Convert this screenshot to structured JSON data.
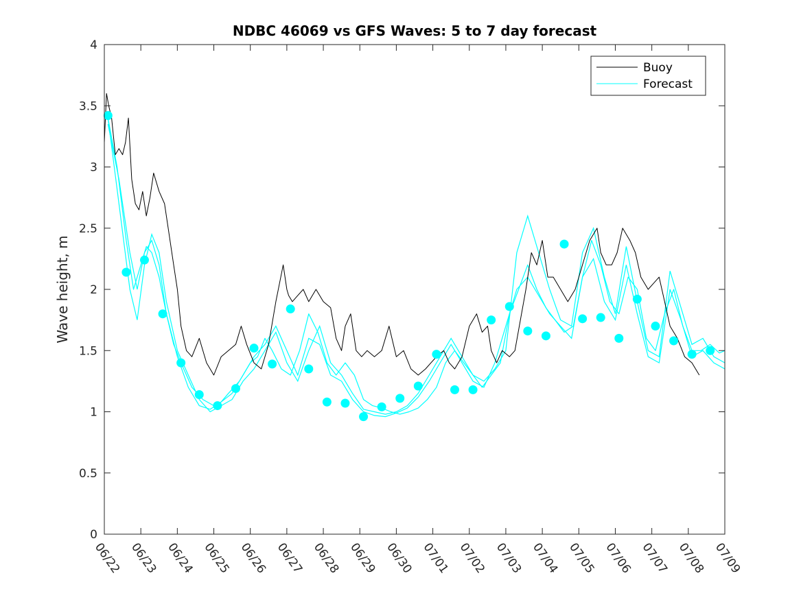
{
  "chart_data": {
    "type": "line",
    "title": "NDBC 46069 vs GFS Waves: 5 to 7 day forecast",
    "xlabel": "",
    "ylabel": "Wave height, m",
    "xlim_days": [
      0,
      17
    ],
    "ylim": [
      0,
      4
    ],
    "x_tick_labels": [
      "06/22",
      "06/23",
      "06/24",
      "06/25",
      "06/26",
      "06/27",
      "06/28",
      "06/29",
      "06/30",
      "07/01",
      "07/02",
      "07/03",
      "07/04",
      "07/05",
      "07/06",
      "07/07",
      "07/08",
      "07/09"
    ],
    "y_tick_labels": [
      "0",
      "0.5",
      "1",
      "1.5",
      "2",
      "2.5",
      "3",
      "3.5",
      "4"
    ],
    "y_ticks": [
      0,
      0.5,
      1,
      1.5,
      2,
      2.5,
      3,
      3.5,
      4
    ],
    "grid": false,
    "legend_position": "top-right",
    "legend": [
      "Buoy",
      "Forecast"
    ],
    "colors": {
      "buoy": "#000000",
      "forecast": "#00ffff"
    },
    "series": [
      {
        "name": "Buoy",
        "color": "#000000",
        "x": [
          0,
          0.06,
          0.12,
          0.2,
          0.3,
          0.4,
          0.5,
          0.58,
          0.66,
          0.75,
          0.85,
          0.95,
          1.05,
          1.15,
          1.25,
          1.35,
          1.5,
          1.65,
          1.8,
          1.9,
          2.0,
          2.1,
          2.25,
          2.4,
          2.6,
          2.8,
          3.0,
          3.2,
          3.4,
          3.6,
          3.75,
          3.9,
          4.1,
          4.3,
          4.5,
          4.7,
          4.9,
          5.0,
          5.05,
          5.15,
          5.3,
          5.45,
          5.6,
          5.8,
          6.0,
          6.2,
          6.35,
          6.5,
          6.6,
          6.75,
          6.9,
          7.05,
          7.2,
          7.4,
          7.6,
          7.8,
          8.0,
          8.2,
          8.4,
          8.6,
          8.8,
          8.95,
          9.1,
          9.3,
          9.45,
          9.6,
          9.8,
          10.0,
          10.2,
          10.35,
          10.5,
          10.6,
          10.75,
          10.9,
          11.1,
          11.25,
          11.4,
          11.55,
          11.7,
          11.85,
          12.0,
          12.15,
          12.3,
          12.5,
          12.7,
          12.9,
          13.1,
          13.3,
          13.5,
          13.6,
          13.75,
          13.9,
          14.05,
          14.2,
          14.4,
          14.55,
          14.7,
          14.9,
          15.05,
          15.2,
          15.35,
          15.5,
          15.7,
          15.9,
          16.1,
          16.3
        ],
        "values": [
          3.2,
          3.6,
          3.5,
          3.4,
          3.1,
          3.15,
          3.1,
          3.2,
          3.4,
          2.9,
          2.7,
          2.65,
          2.8,
          2.6,
          2.75,
          2.95,
          2.8,
          2.7,
          2.4,
          2.2,
          2.0,
          1.7,
          1.5,
          1.45,
          1.6,
          1.4,
          1.3,
          1.45,
          1.5,
          1.55,
          1.7,
          1.55,
          1.4,
          1.35,
          1.55,
          1.9,
          2.2,
          2.0,
          1.95,
          1.9,
          1.95,
          2.0,
          1.9,
          2.0,
          1.9,
          1.85,
          1.6,
          1.5,
          1.7,
          1.8,
          1.5,
          1.45,
          1.5,
          1.45,
          1.5,
          1.7,
          1.45,
          1.5,
          1.35,
          1.3,
          1.35,
          1.4,
          1.45,
          1.5,
          1.4,
          1.35,
          1.45,
          1.7,
          1.8,
          1.65,
          1.7,
          1.5,
          1.4,
          1.5,
          1.45,
          1.5,
          1.75,
          2.0,
          2.3,
          2.2,
          2.4,
          2.1,
          2.1,
          2.0,
          1.9,
          2.0,
          2.2,
          2.4,
          2.5,
          2.3,
          2.2,
          2.2,
          2.3,
          2.5,
          2.4,
          2.3,
          2.1,
          2.0,
          2.05,
          2.1,
          1.9,
          1.7,
          1.6,
          1.45,
          1.4,
          1.3
        ]
      },
      {
        "name": "Forecast",
        "color": "#00ffff",
        "x": [
          0.1,
          0.35,
          0.6,
          0.8,
          1.0,
          1.15,
          1.3,
          1.5,
          1.7,
          1.9,
          2.1,
          2.4,
          2.7,
          3.0,
          3.2,
          3.4,
          3.7,
          4.0,
          4.2,
          4.4,
          4.6,
          4.85,
          5.1,
          5.35,
          5.6,
          5.85,
          6.1,
          6.35,
          6.6,
          6.85,
          7.1,
          7.35,
          7.6,
          7.85,
          8.1,
          8.35,
          8.6,
          8.85,
          9.1,
          9.35,
          9.6,
          9.85,
          10.1,
          10.35,
          10.6,
          10.85,
          11.1,
          11.35,
          11.6,
          11.85,
          12.1,
          12.35,
          12.6,
          12.85,
          13.1,
          13.35,
          13.6,
          13.85,
          14.1,
          14.35,
          14.6,
          14.85,
          15.1,
          15.35,
          15.6,
          15.85,
          16.1,
          16.35,
          16.6,
          16.85,
          17.0
        ],
        "values": [
          3.4,
          3.0,
          2.4,
          2.0,
          2.2,
          2.35,
          2.3,
          2.1,
          1.8,
          1.55,
          1.4,
          1.2,
          1.1,
          1.05,
          1.08,
          1.15,
          1.25,
          1.4,
          1.45,
          1.6,
          1.5,
          1.35,
          1.3,
          1.5,
          1.8,
          1.65,
          1.4,
          1.3,
          1.4,
          1.3,
          1.1,
          1.05,
          1.03,
          1.0,
          0.98,
          1.0,
          1.03,
          1.1,
          1.2,
          1.4,
          1.5,
          1.4,
          1.3,
          1.2,
          1.3,
          1.4,
          1.8,
          2.0,
          2.2,
          2.0,
          1.85,
          1.75,
          1.65,
          1.7,
          2.1,
          2.4,
          2.2,
          1.9,
          1.8,
          2.1,
          2.0,
          1.6,
          1.5,
          1.8,
          2.0,
          1.7,
          1.5,
          1.5,
          1.55,
          1.48,
          1.5
        ]
      }
    ],
    "forecast_ensemble": [
      {
        "x": [
          0.1,
          0.4,
          0.7,
          0.9,
          1.1,
          1.3,
          1.5,
          1.7,
          2.0,
          2.3,
          2.6,
          2.9,
          3.2,
          3.5,
          3.8,
          4.1,
          4.4,
          4.7,
          5.0,
          5.3,
          5.6,
          5.9,
          6.2,
          6.5,
          6.8,
          7.1,
          7.4,
          7.7,
          8.0,
          8.3,
          8.6,
          8.9,
          9.2,
          9.5,
          9.8,
          10.1,
          10.4,
          10.7,
          11.0,
          11.3,
          11.6,
          11.9,
          12.2,
          12.5,
          12.8,
          13.1,
          13.4,
          13.7,
          14.0,
          14.3,
          14.6,
          14.9,
          15.2,
          15.5,
          15.8,
          16.1,
          16.4,
          16.7,
          17.0
        ],
        "values": [
          3.4,
          2.7,
          2.0,
          1.75,
          2.2,
          2.45,
          2.3,
          1.9,
          1.5,
          1.3,
          1.1,
          1.0,
          1.05,
          1.1,
          1.25,
          1.35,
          1.5,
          1.65,
          1.4,
          1.25,
          1.5,
          1.7,
          1.4,
          1.3,
          1.15,
          1.02,
          1.0,
          0.98,
          1.0,
          1.05,
          1.15,
          1.3,
          1.45,
          1.6,
          1.45,
          1.3,
          1.25,
          1.35,
          1.5,
          2.3,
          2.6,
          2.3,
          2.0,
          1.75,
          1.7,
          2.3,
          2.5,
          2.1,
          1.8,
          2.35,
          1.9,
          1.5,
          1.45,
          2.15,
          1.85,
          1.55,
          1.6,
          1.45,
          1.4
        ]
      },
      {
        "x": [
          0.1,
          0.4,
          0.7,
          0.9,
          1.1,
          1.3,
          1.5,
          1.7,
          2.0,
          2.3,
          2.6,
          2.9,
          3.2,
          3.5,
          3.8,
          4.1,
          4.4,
          4.7,
          5.0,
          5.3,
          5.6,
          5.9,
          6.2,
          6.5,
          6.8,
          7.1,
          7.4,
          7.7,
          8.0,
          8.3,
          8.6,
          8.9,
          9.2,
          9.5,
          9.8,
          10.1,
          10.4,
          10.7,
          11.0,
          11.3,
          11.6,
          11.9,
          12.2,
          12.5,
          12.8,
          13.1,
          13.4,
          13.7,
          14.0,
          14.3,
          14.6,
          14.9,
          15.2,
          15.5,
          15.8,
          16.1,
          16.4,
          16.7,
          17.0
        ],
        "values": [
          3.35,
          2.9,
          2.3,
          2.0,
          2.3,
          2.4,
          2.2,
          1.8,
          1.45,
          1.2,
          1.05,
          1.02,
          1.08,
          1.15,
          1.3,
          1.45,
          1.55,
          1.7,
          1.5,
          1.3,
          1.6,
          1.55,
          1.3,
          1.25,
          1.1,
          1.0,
          0.97,
          0.96,
          0.99,
          1.03,
          1.12,
          1.25,
          1.4,
          1.55,
          1.4,
          1.25,
          1.2,
          1.4,
          1.7,
          2.0,
          2.1,
          1.95,
          1.8,
          1.7,
          1.6,
          2.1,
          2.25,
          1.9,
          1.75,
          2.2,
          1.8,
          1.45,
          1.4,
          2.0,
          1.75,
          1.45,
          1.5,
          1.4,
          1.35
        ]
      }
    ],
    "forecast_markers": {
      "x": [
        0.1,
        0.6,
        1.1,
        1.6,
        2.1,
        2.6,
        3.1,
        3.6,
        4.1,
        4.6,
        5.1,
        5.6,
        6.1,
        6.6,
        7.1,
        7.6,
        8.1,
        8.6,
        9.1,
        9.6,
        10.1,
        10.6,
        11.1,
        11.6,
        12.1,
        12.6,
        13.1,
        13.6,
        14.1,
        14.6,
        15.1,
        15.6,
        16.1,
        16.6
      ],
      "values": [
        3.42,
        2.14,
        2.24,
        1.8,
        1.4,
        1.14,
        1.05,
        1.19,
        1.52,
        1.39,
        1.84,
        1.35,
        1.08,
        1.07,
        0.96,
        1.04,
        1.11,
        1.21,
        1.47,
        1.18,
        1.18,
        1.75,
        1.86,
        1.66,
        1.62,
        2.37,
        1.76,
        1.77,
        1.6,
        1.92,
        1.7,
        1.58,
        1.47,
        1.5
      ]
    }
  }
}
